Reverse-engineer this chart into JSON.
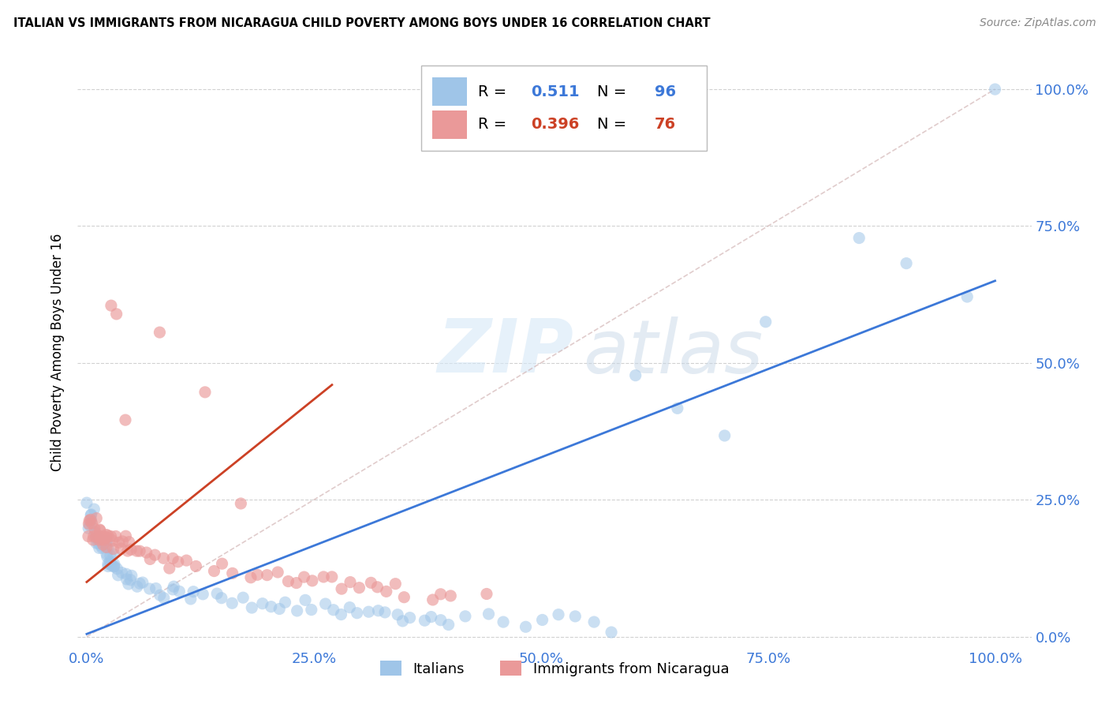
{
  "title": "ITALIAN VS IMMIGRANTS FROM NICARAGUA CHILD POVERTY AMONG BOYS UNDER 16 CORRELATION CHART",
  "source": "Source: ZipAtlas.com",
  "tick_labels": [
    "0.0%",
    "25.0%",
    "50.0%",
    "75.0%",
    "100.0%"
  ],
  "ylabel_label": "Child Poverty Among Boys Under 16",
  "watermark_zip": "ZIP",
  "watermark_atlas": "atlas",
  "legend_blue_r": "0.511",
  "legend_blue_n": "96",
  "legend_pink_r": "0.396",
  "legend_pink_n": "76",
  "legend_label_blue": "Italians",
  "legend_label_pink": "Immigrants from Nicaragua",
  "blue_color": "#9fc5e8",
  "pink_color": "#ea9999",
  "blue_line_color": "#3c78d8",
  "pink_line_color": "#cc4125",
  "background_color": "#ffffff",
  "grid_color": "#cccccc",
  "blue_scatter_x": [
    0.002,
    0.003,
    0.004,
    0.005,
    0.006,
    0.007,
    0.008,
    0.009,
    0.01,
    0.011,
    0.012,
    0.013,
    0.014,
    0.015,
    0.016,
    0.017,
    0.018,
    0.019,
    0.02,
    0.021,
    0.022,
    0.023,
    0.024,
    0.025,
    0.026,
    0.027,
    0.028,
    0.029,
    0.03,
    0.032,
    0.034,
    0.036,
    0.038,
    0.04,
    0.042,
    0.044,
    0.046,
    0.048,
    0.05,
    0.055,
    0.06,
    0.065,
    0.07,
    0.075,
    0.08,
    0.085,
    0.09,
    0.095,
    0.1,
    0.11,
    0.12,
    0.13,
    0.14,
    0.15,
    0.16,
    0.17,
    0.18,
    0.19,
    0.2,
    0.21,
    0.22,
    0.23,
    0.24,
    0.25,
    0.26,
    0.27,
    0.28,
    0.29,
    0.3,
    0.31,
    0.32,
    0.33,
    0.34,
    0.35,
    0.36,
    0.37,
    0.38,
    0.39,
    0.4,
    0.42,
    0.44,
    0.46,
    0.48,
    0.5,
    0.52,
    0.54,
    0.56,
    0.58,
    0.6,
    0.65,
    0.7,
    0.75,
    0.85,
    0.9,
    0.97,
    1.0
  ],
  "blue_scatter_y": [
    0.25,
    0.23,
    0.22,
    0.2,
    0.21,
    0.19,
    0.2,
    0.22,
    0.18,
    0.19,
    0.17,
    0.18,
    0.16,
    0.17,
    0.18,
    0.16,
    0.15,
    0.16,
    0.17,
    0.15,
    0.14,
    0.15,
    0.16,
    0.14,
    0.13,
    0.14,
    0.15,
    0.13,
    0.12,
    0.13,
    0.12,
    0.13,
    0.11,
    0.12,
    0.11,
    0.12,
    0.1,
    0.11,
    0.1,
    0.09,
    0.1,
    0.09,
    0.08,
    0.09,
    0.08,
    0.07,
    0.08,
    0.09,
    0.08,
    0.07,
    0.08,
    0.07,
    0.08,
    0.07,
    0.06,
    0.07,
    0.06,
    0.07,
    0.06,
    0.05,
    0.06,
    0.05,
    0.06,
    0.05,
    0.06,
    0.05,
    0.04,
    0.05,
    0.04,
    0.05,
    0.04,
    0.05,
    0.04,
    0.03,
    0.04,
    0.03,
    0.04,
    0.03,
    0.02,
    0.03,
    0.04,
    0.03,
    0.02,
    0.03,
    0.04,
    0.03,
    0.02,
    0.01,
    0.48,
    0.43,
    0.37,
    0.58,
    0.73,
    0.68,
    0.62,
    1.0
  ],
  "pink_scatter_x": [
    0.002,
    0.003,
    0.004,
    0.005,
    0.006,
    0.007,
    0.008,
    0.009,
    0.01,
    0.011,
    0.012,
    0.013,
    0.014,
    0.015,
    0.016,
    0.017,
    0.018,
    0.019,
    0.02,
    0.021,
    0.022,
    0.023,
    0.024,
    0.025,
    0.026,
    0.028,
    0.03,
    0.032,
    0.034,
    0.036,
    0.038,
    0.04,
    0.042,
    0.044,
    0.046,
    0.048,
    0.05,
    0.055,
    0.06,
    0.065,
    0.07,
    0.075,
    0.08,
    0.085,
    0.09,
    0.095,
    0.1,
    0.11,
    0.12,
    0.13,
    0.14,
    0.15,
    0.16,
    0.17,
    0.18,
    0.19,
    0.2,
    0.21,
    0.22,
    0.23,
    0.24,
    0.25,
    0.26,
    0.27,
    0.28,
    0.29,
    0.3,
    0.31,
    0.32,
    0.33,
    0.34,
    0.35,
    0.38,
    0.39,
    0.4,
    0.44
  ],
  "pink_scatter_y": [
    0.2,
    0.21,
    0.22,
    0.19,
    0.2,
    0.18,
    0.19,
    0.2,
    0.21,
    0.19,
    0.2,
    0.18,
    0.19,
    0.2,
    0.19,
    0.18,
    0.17,
    0.18,
    0.19,
    0.18,
    0.17,
    0.18,
    0.19,
    0.18,
    0.6,
    0.18,
    0.17,
    0.18,
    0.58,
    0.17,
    0.16,
    0.17,
    0.18,
    0.4,
    0.16,
    0.17,
    0.16,
    0.15,
    0.16,
    0.15,
    0.14,
    0.15,
    0.55,
    0.14,
    0.13,
    0.14,
    0.13,
    0.14,
    0.13,
    0.45,
    0.12,
    0.13,
    0.12,
    0.25,
    0.11,
    0.12,
    0.11,
    0.12,
    0.11,
    0.1,
    0.11,
    0.1,
    0.11,
    0.1,
    0.09,
    0.1,
    0.09,
    0.1,
    0.09,
    0.08,
    0.09,
    0.08,
    0.07,
    0.08,
    0.07,
    0.08
  ]
}
